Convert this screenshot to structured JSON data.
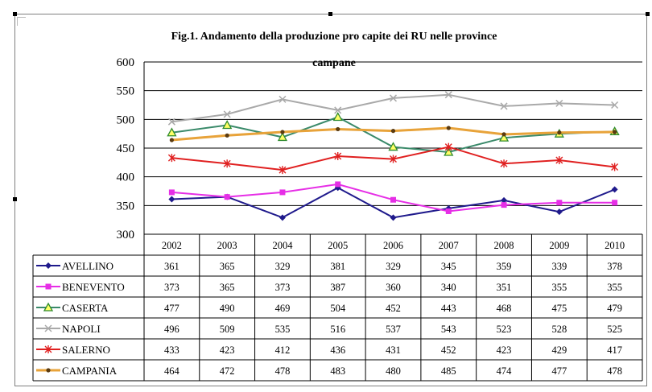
{
  "chart_data": {
    "type": "line",
    "title_line1": "Fig.1.  Andamento della produzione pro capite dei RU nelle province",
    "title_line2": "campane",
    "categories": [
      "2002",
      "2003",
      "2004",
      "2005",
      "2006",
      "2007",
      "2008",
      "2009",
      "2010"
    ],
    "ylim": [
      300,
      600
    ],
    "yticks": [
      300,
      350,
      400,
      450,
      500,
      550,
      600
    ],
    "grid": "horizontal",
    "legend": "data-table",
    "series": [
      {
        "name": "AVELLINO",
        "color": "#1f1a8c",
        "marker": "diamond",
        "values": [
          361,
          365,
          329,
          381,
          329,
          345,
          359,
          339,
          378
        ]
      },
      {
        "name": "BENEVENTO",
        "color": "#e62ee6",
        "marker": "square",
        "values": [
          373,
          365,
          373,
          387,
          360,
          340,
          351,
          355,
          355
        ]
      },
      {
        "name": "CASERTA",
        "color": "#3a8a6a",
        "marker": "triangle",
        "values": [
          477,
          490,
          469,
          504,
          452,
          443,
          468,
          475,
          479
        ]
      },
      {
        "name": "NAPOLI",
        "color": "#a9a9a9",
        "marker": "x",
        "values": [
          496,
          509,
          535,
          516,
          537,
          543,
          523,
          528,
          525
        ]
      },
      {
        "name": "SALERNO",
        "color": "#e02020",
        "marker": "star",
        "values": [
          433,
          423,
          412,
          436,
          431,
          452,
          423,
          429,
          417
        ]
      },
      {
        "name": "CAMPANIA",
        "color": "#e8a33a",
        "marker": "dot",
        "values": [
          464,
          472,
          478,
          483,
          480,
          485,
          474,
          477,
          478
        ]
      }
    ]
  }
}
